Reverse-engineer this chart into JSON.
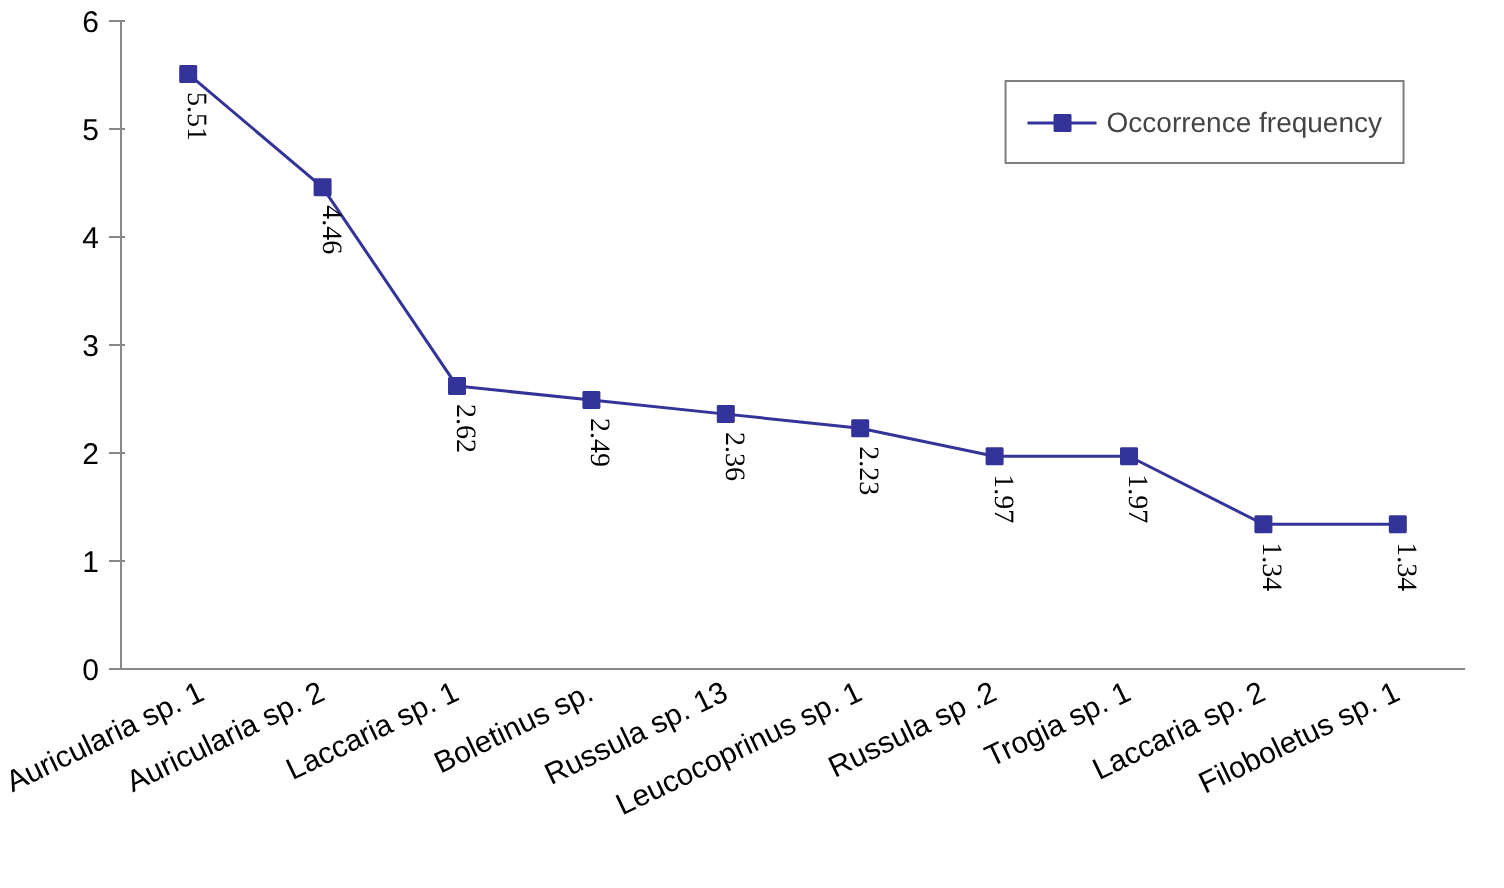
{
  "chart_data": {
    "type": "line",
    "categories": [
      "Auricularia sp. 1",
      "Auricularia sp. 2",
      "Laccaria sp. 1",
      "Boletinus sp.",
      "Russula sp. 13",
      "Leucocoprinus sp. 1",
      "Russula sp .2",
      "Trogia sp. 1",
      "Laccaria sp. 2",
      "Filoboletus sp. 1"
    ],
    "series": [
      {
        "name": "Occorrence frequency",
        "color": "#333399",
        "values": [
          5.51,
          4.46,
          2.62,
          2.49,
          2.36,
          2.23,
          1.97,
          1.97,
          1.34,
          1.34
        ]
      }
    ],
    "ylim": [
      0,
      6
    ],
    "yticks": [
      0,
      1,
      2,
      3,
      4,
      5,
      6
    ],
    "grid": false,
    "legend": "top right",
    "marker": "square",
    "line_style": "solid",
    "data_labels": true
  }
}
